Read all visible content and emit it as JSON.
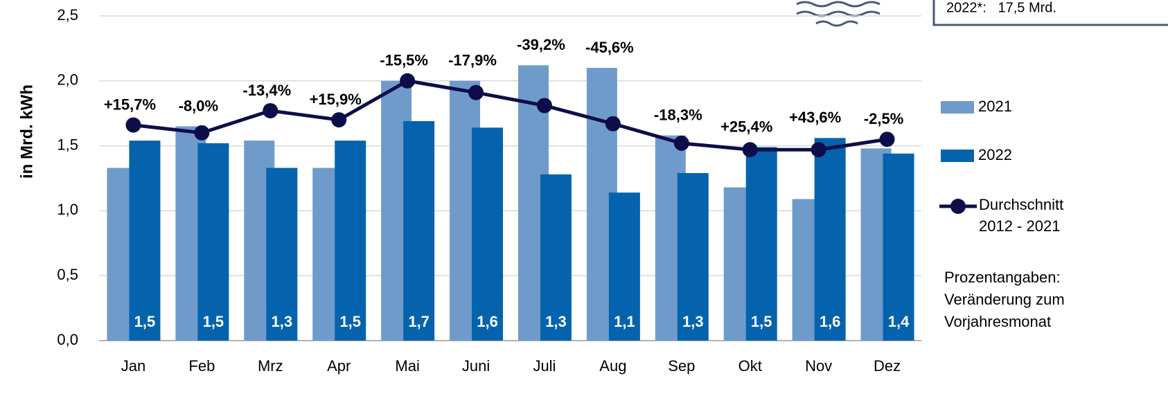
{
  "chart_data": {
    "type": "bar",
    "y_label": "in Mrd. kWh",
    "categories": [
      "Jan",
      "Feb",
      "Mrz",
      "Apr",
      "Mai",
      "Juni",
      "Juli",
      "Aug",
      "Sep",
      "Okt",
      "Nov",
      "Dez"
    ],
    "series": [
      {
        "name": "2021",
        "color": "#6f9bcb",
        "values": [
          1.33,
          1.65,
          1.54,
          1.33,
          2.0,
          2.0,
          2.12,
          2.1,
          1.58,
          1.18,
          1.09,
          1.48
        ]
      },
      {
        "name": "2022",
        "color": "#0563ad",
        "values": [
          1.54,
          1.52,
          1.33,
          1.54,
          1.69,
          1.64,
          1.28,
          1.14,
          1.29,
          1.49,
          1.56,
          1.44
        ],
        "value_labels": [
          "1,5",
          "1,5",
          "1,3",
          "1,5",
          "1,7",
          "1,6",
          "1,3",
          "1,1",
          "1,3",
          "1,5",
          "1,6",
          "1,4"
        ]
      },
      {
        "name": "Durchschnitt 2012 - 2021",
        "type": "line",
        "color": "#0d0d4a",
        "values": [
          1.66,
          1.6,
          1.77,
          1.7,
          2.0,
          1.91,
          1.81,
          1.67,
          1.52,
          1.47,
          1.47,
          1.55
        ]
      }
    ],
    "change_labels": [
      "+15,7%",
      "-8,0%",
      "-13,4%",
      "+15,9%",
      "-15,5%",
      "-17,9%",
      "-39,2%",
      "-45,6%",
      "-18,3%",
      "+25,4%",
      "+43,6%",
      "-2,5%"
    ],
    "note": "Prozentangaben: Veränderung zum Vorjahresmonat",
    "info_box": "2022*:   17,5 Mrd.",
    "ylim": [
      0,
      2.5
    ],
    "yticks": [
      {
        "value": 0,
        "label": "0,0"
      },
      {
        "value": 0.5,
        "label": "0,5"
      },
      {
        "value": 1,
        "label": "1,0"
      },
      {
        "value": 1.5,
        "label": "1,5"
      },
      {
        "value": 2,
        "label": "2,0"
      },
      {
        "value": 2.5,
        "label": "2,5"
      }
    ],
    "grid": true
  }
}
